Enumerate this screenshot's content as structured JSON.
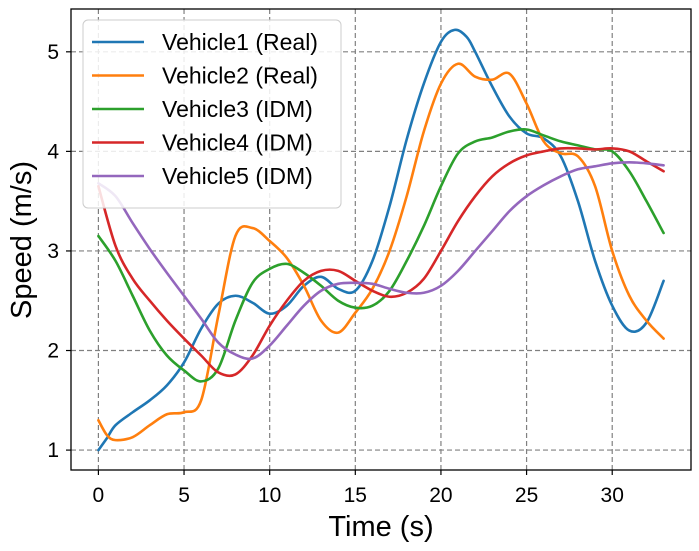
{
  "chart_data": {
    "type": "line",
    "title": "",
    "xlabel": "Time (s)",
    "ylabel": "Speed (m/s)",
    "xlim": [
      -1.6,
      34.6
    ],
    "ylim": [
      0.8,
      5.43
    ],
    "xticks": [
      0,
      5,
      10,
      15,
      20,
      25,
      30
    ],
    "yticks": [
      1,
      2,
      3,
      4,
      5
    ],
    "xtick_labels": [
      "0",
      "5",
      "10",
      "15",
      "20",
      "25",
      "30"
    ],
    "ytick_labels": [
      "1",
      "2",
      "3",
      "4",
      "5"
    ],
    "grid": true,
    "legend_position": "upper-left",
    "series": [
      {
        "name": "Vehicle1 (Real)",
        "color": "#1f77b4",
        "points": [
          [
            0,
            1.0
          ],
          [
            0.5,
            1.12
          ],
          [
            1,
            1.25
          ],
          [
            2,
            1.38
          ],
          [
            3,
            1.5
          ],
          [
            4,
            1.65
          ],
          [
            5,
            1.88
          ],
          [
            6,
            2.22
          ],
          [
            7,
            2.47
          ],
          [
            8,
            2.55
          ],
          [
            9,
            2.48
          ],
          [
            10,
            2.37
          ],
          [
            11,
            2.45
          ],
          [
            12,
            2.65
          ],
          [
            13,
            2.74
          ],
          [
            14,
            2.62
          ],
          [
            15,
            2.6
          ],
          [
            16,
            2.9
          ],
          [
            17,
            3.45
          ],
          [
            18,
            4.12
          ],
          [
            19,
            4.68
          ],
          [
            20,
            5.1
          ],
          [
            20.8,
            5.22
          ],
          [
            21.5,
            5.15
          ],
          [
            22,
            5.0
          ],
          [
            23,
            4.65
          ],
          [
            24,
            4.35
          ],
          [
            25,
            4.18
          ],
          [
            26,
            4.13
          ],
          [
            27,
            3.95
          ],
          [
            28,
            3.5
          ],
          [
            29,
            2.9
          ],
          [
            30,
            2.45
          ],
          [
            31,
            2.2
          ],
          [
            32,
            2.28
          ],
          [
            33,
            2.7
          ]
        ]
      },
      {
        "name": "Vehicle2 (Real)",
        "color": "#ff7f0e",
        "points": [
          [
            0,
            1.3
          ],
          [
            0.5,
            1.15
          ],
          [
            1,
            1.1
          ],
          [
            2,
            1.13
          ],
          [
            3,
            1.25
          ],
          [
            4,
            1.36
          ],
          [
            5,
            1.38
          ],
          [
            6,
            1.5
          ],
          [
            7,
            2.35
          ],
          [
            8,
            3.15
          ],
          [
            9,
            3.23
          ],
          [
            10,
            3.1
          ],
          [
            11,
            2.93
          ],
          [
            12,
            2.65
          ],
          [
            13,
            2.3
          ],
          [
            14,
            2.18
          ],
          [
            15,
            2.38
          ],
          [
            16,
            2.62
          ],
          [
            17,
            3.0
          ],
          [
            18,
            3.55
          ],
          [
            19,
            4.2
          ],
          [
            20,
            4.68
          ],
          [
            21,
            4.88
          ],
          [
            22,
            4.75
          ],
          [
            23,
            4.72
          ],
          [
            24,
            4.78
          ],
          [
            25,
            4.48
          ],
          [
            26,
            4.1
          ],
          [
            27,
            3.98
          ],
          [
            28,
            3.95
          ],
          [
            29,
            3.65
          ],
          [
            30,
            3.0
          ],
          [
            31,
            2.55
          ],
          [
            32,
            2.3
          ],
          [
            33,
            2.12
          ]
        ]
      },
      {
        "name": "Vehicle3 (IDM)",
        "color": "#2ca02c",
        "points": [
          [
            0,
            3.15
          ],
          [
            1,
            2.9
          ],
          [
            2,
            2.55
          ],
          [
            3,
            2.2
          ],
          [
            4,
            1.95
          ],
          [
            5,
            1.8
          ],
          [
            6,
            1.69
          ],
          [
            7,
            1.82
          ],
          [
            8,
            2.3
          ],
          [
            9,
            2.68
          ],
          [
            10,
            2.82
          ],
          [
            11,
            2.87
          ],
          [
            12,
            2.78
          ],
          [
            13,
            2.65
          ],
          [
            14,
            2.5
          ],
          [
            15,
            2.43
          ],
          [
            16,
            2.45
          ],
          [
            17,
            2.6
          ],
          [
            18,
            2.9
          ],
          [
            19,
            3.25
          ],
          [
            20,
            3.65
          ],
          [
            21,
            3.98
          ],
          [
            22,
            4.1
          ],
          [
            23,
            4.14
          ],
          [
            24,
            4.2
          ],
          [
            25,
            4.22
          ],
          [
            26,
            4.16
          ],
          [
            27,
            4.1
          ],
          [
            28,
            4.06
          ],
          [
            29,
            4.02
          ],
          [
            30,
            4.0
          ],
          [
            31,
            3.8
          ],
          [
            32,
            3.5
          ],
          [
            33,
            3.18
          ]
        ]
      },
      {
        "name": "Vehicle4 (IDM)",
        "color": "#d62728",
        "points": [
          [
            0,
            3.65
          ],
          [
            1,
            3.05
          ],
          [
            2,
            2.72
          ],
          [
            3,
            2.5
          ],
          [
            4,
            2.3
          ],
          [
            5,
            2.12
          ],
          [
            6,
            1.95
          ],
          [
            7,
            1.78
          ],
          [
            8,
            1.76
          ],
          [
            9,
            1.95
          ],
          [
            10,
            2.25
          ],
          [
            11,
            2.5
          ],
          [
            12,
            2.7
          ],
          [
            13,
            2.8
          ],
          [
            14,
            2.8
          ],
          [
            15,
            2.7
          ],
          [
            16,
            2.6
          ],
          [
            17,
            2.54
          ],
          [
            18,
            2.58
          ],
          [
            19,
            2.72
          ],
          [
            20,
            3.0
          ],
          [
            21,
            3.3
          ],
          [
            22,
            3.55
          ],
          [
            23,
            3.75
          ],
          [
            24,
            3.88
          ],
          [
            25,
            3.96
          ],
          [
            26,
            4.0
          ],
          [
            27,
            4.03
          ],
          [
            28,
            4.03
          ],
          [
            29,
            4.02
          ],
          [
            30,
            4.03
          ],
          [
            31,
            4.0
          ],
          [
            32,
            3.9
          ],
          [
            33,
            3.8
          ]
        ]
      },
      {
        "name": "Vehicle5 (IDM)",
        "color": "#9467bd",
        "points": [
          [
            0,
            3.68
          ],
          [
            1,
            3.55
          ],
          [
            2,
            3.28
          ],
          [
            3,
            3.02
          ],
          [
            4,
            2.78
          ],
          [
            5,
            2.55
          ],
          [
            6,
            2.32
          ],
          [
            7,
            2.08
          ],
          [
            8,
            1.96
          ],
          [
            9,
            1.92
          ],
          [
            10,
            2.05
          ],
          [
            11,
            2.25
          ],
          [
            12,
            2.45
          ],
          [
            13,
            2.6
          ],
          [
            14,
            2.67
          ],
          [
            15,
            2.68
          ],
          [
            16,
            2.67
          ],
          [
            17,
            2.62
          ],
          [
            18,
            2.58
          ],
          [
            19,
            2.58
          ],
          [
            20,
            2.65
          ],
          [
            21,
            2.8
          ],
          [
            22,
            3.0
          ],
          [
            23,
            3.2
          ],
          [
            24,
            3.4
          ],
          [
            25,
            3.55
          ],
          [
            26,
            3.66
          ],
          [
            27,
            3.75
          ],
          [
            28,
            3.82
          ],
          [
            29,
            3.85
          ],
          [
            30,
            3.88
          ],
          [
            31,
            3.89
          ],
          [
            32,
            3.88
          ],
          [
            33,
            3.86
          ]
        ]
      }
    ]
  }
}
